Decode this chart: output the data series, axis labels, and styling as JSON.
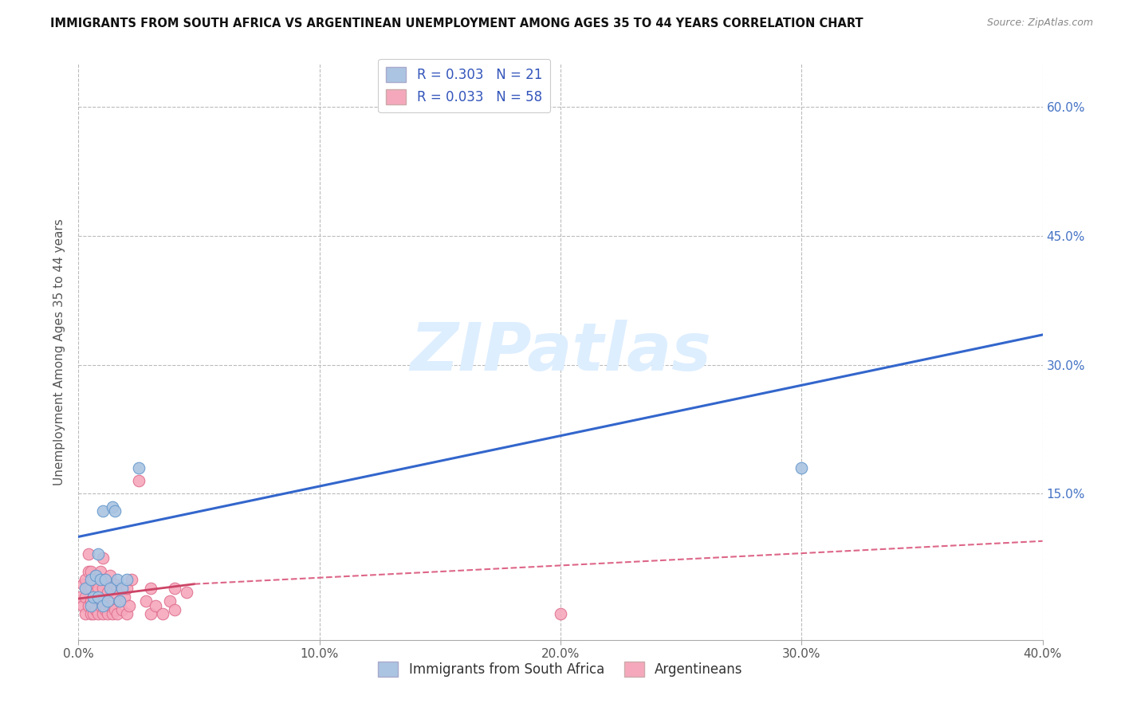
{
  "title": "IMMIGRANTS FROM SOUTH AFRICA VS ARGENTINEAN UNEMPLOYMENT AMONG AGES 35 TO 44 YEARS CORRELATION CHART",
  "source": "Source: ZipAtlas.com",
  "ylabel": "Unemployment Among Ages 35 to 44 years",
  "xlim": [
    0.0,
    0.4
  ],
  "ylim": [
    -0.02,
    0.65
  ],
  "xticks": [
    0.0,
    0.1,
    0.2,
    0.3,
    0.4
  ],
  "xtick_labels": [
    "0.0%",
    "10.0%",
    "20.0%",
    "30.0%",
    "40.0%"
  ],
  "yticks": [
    0.0,
    0.15,
    0.3,
    0.45,
    0.6
  ],
  "ytick_labels": [
    "",
    "15.0%",
    "30.0%",
    "45.0%",
    "60.0%"
  ],
  "legend1_label": "R = 0.303   N = 21",
  "legend2_label": "R = 0.033   N = 58",
  "series1_color": "#aac4e2",
  "series2_color": "#f5a8bc",
  "series1_edge": "#6699cc",
  "series2_edge": "#e07090",
  "trend1_color": "#3366cc",
  "trend2_color": "#cc4466",
  "trend2_dash_color": "#dd6688",
  "background_color": "#ffffff",
  "grid_color": "#bbbbbb",
  "watermark_color": "#ddeeff",
  "series1_x": [
    0.003,
    0.005,
    0.005,
    0.006,
    0.007,
    0.008,
    0.008,
    0.009,
    0.01,
    0.01,
    0.011,
    0.012,
    0.013,
    0.014,
    0.015,
    0.016,
    0.017,
    0.018,
    0.02,
    0.025,
    0.3
  ],
  "series1_y": [
    0.04,
    0.02,
    0.05,
    0.03,
    0.055,
    0.03,
    0.08,
    0.05,
    0.02,
    0.13,
    0.05,
    0.025,
    0.04,
    0.135,
    0.13,
    0.05,
    0.025,
    0.04,
    0.05,
    0.18,
    0.18
  ],
  "series2_x": [
    0.001,
    0.002,
    0.002,
    0.003,
    0.003,
    0.003,
    0.004,
    0.004,
    0.004,
    0.004,
    0.005,
    0.005,
    0.005,
    0.005,
    0.006,
    0.006,
    0.006,
    0.007,
    0.007,
    0.007,
    0.008,
    0.008,
    0.009,
    0.009,
    0.01,
    0.01,
    0.01,
    0.01,
    0.011,
    0.011,
    0.012,
    0.012,
    0.013,
    0.013,
    0.014,
    0.014,
    0.015,
    0.015,
    0.016,
    0.016,
    0.017,
    0.018,
    0.019,
    0.02,
    0.02,
    0.021,
    0.022,
    0.025,
    0.028,
    0.03,
    0.03,
    0.032,
    0.035,
    0.038,
    0.04,
    0.04,
    0.045,
    0.2
  ],
  "series2_y": [
    0.03,
    0.02,
    0.045,
    0.01,
    0.03,
    0.05,
    0.02,
    0.04,
    0.06,
    0.08,
    0.01,
    0.025,
    0.04,
    0.06,
    0.01,
    0.03,
    0.05,
    0.015,
    0.035,
    0.055,
    0.01,
    0.04,
    0.02,
    0.06,
    0.01,
    0.025,
    0.04,
    0.075,
    0.015,
    0.05,
    0.01,
    0.035,
    0.02,
    0.055,
    0.01,
    0.035,
    0.015,
    0.045,
    0.01,
    0.04,
    0.025,
    0.015,
    0.03,
    0.01,
    0.04,
    0.02,
    0.05,
    0.165,
    0.025,
    0.01,
    0.04,
    0.02,
    0.01,
    0.025,
    0.015,
    0.04,
    0.035,
    0.01
  ],
  "trend1_x_start": 0.0,
  "trend1_y_start": 0.1,
  "trend1_x_end": 0.4,
  "trend1_y_end": 0.335,
  "trend2_solid_x_start": 0.0,
  "trend2_solid_y_start": 0.028,
  "trend2_solid_x_end": 0.048,
  "trend2_solid_y_end": 0.045,
  "trend2_dash_x_start": 0.048,
  "trend2_dash_y_start": 0.045,
  "trend2_dash_x_end": 0.4,
  "trend2_dash_y_end": 0.095
}
